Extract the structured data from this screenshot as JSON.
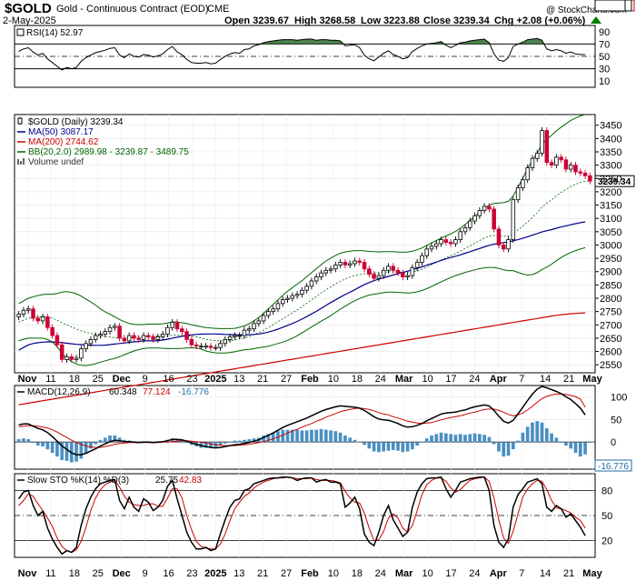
{
  "header": {
    "symbol": "$GOLD",
    "name": "Gold - Continuous Contract (EOD)",
    "exchange": "CME",
    "date": "2-May-2025",
    "open": "Open 3239.67",
    "high": "High 3268.58",
    "low": "Low 3223.88",
    "close": "Close 3239.34",
    "change": "Chg +2.08 (+0.06%)",
    "change_arrow": "up-arrow-icon",
    "watermark": "@ StockCharts.com",
    "colors": {
      "up": "#008000",
      "down": "#cc0033",
      "ma50": "#00008b",
      "ma200": "#cc0000",
      "bb": "#006400"
    }
  },
  "rsi_panel": {
    "legend": "RSI(14) 52.97",
    "ticks": [
      "90",
      "70",
      "50",
      "30",
      "10"
    ],
    "last": "52.97"
  },
  "price_panel": {
    "legend": [
      {
        "label": "$GOLD (Daily) 3239.34",
        "color": "#000000",
        "swatch": "candle"
      },
      {
        "label": "MA(50) 3087.17",
        "color": "#00008b",
        "swatch": "line"
      },
      {
        "label": "MA(200) 2744.62",
        "color": "#cc0000",
        "swatch": "line"
      },
      {
        "label": "BB(20,2.0) 2989.98 - 3239.87 - 3489.75",
        "color": "#006400",
        "swatch": "line"
      },
      {
        "label": "Volume undef",
        "color": "#666666",
        "swatch": "vol"
      }
    ],
    "ticks": [
      "3450",
      "3400",
      "3350",
      "3300",
      "3250",
      "3200",
      "3150",
      "3100",
      "3050",
      "3000",
      "2950",
      "2900",
      "2850",
      "2800",
      "2750",
      "2700",
      "2650",
      "2600",
      "2550"
    ],
    "boxes": {
      "bb_upper": "3489.75",
      "close": "3239.34",
      "ma50": "3087.17",
      "bb_lower": "2989.98",
      "ma200": "2744.62"
    }
  },
  "macd_panel": {
    "legend_prefix": "MACD(12,26,9)",
    "macd": "60.348",
    "signal": "77.124",
    "hist": "-16.776",
    "ticks": [
      "100",
      "50",
      "0"
    ]
  },
  "sto_panel": {
    "legend_prefix": "Slow STO %K(14) %D(3)",
    "k": "25.75",
    "d": "42.83",
    "ticks": [
      "80",
      "50",
      "20"
    ]
  },
  "x_axis": {
    "labels": [
      "Nov",
      "11",
      "18",
      "25",
      "Dec",
      "9",
      "16",
      "23",
      "2025",
      "13",
      "21",
      "27",
      "Feb",
      "10",
      "18",
      "24",
      "Mar",
      "10",
      "17",
      "24",
      "Apr",
      "7",
      "14",
      "21",
      "May"
    ],
    "bold": [
      "Nov",
      "Dec",
      "2025",
      "Feb",
      "Mar",
      "Apr",
      "May"
    ]
  },
  "chart_data": {
    "type": "candlestick",
    "title": "$GOLD",
    "subtitle": "Gold - Continuous Contract (EOD)",
    "price_ylim": [
      2520,
      3490
    ],
    "rsi_ylim": [
      0,
      100
    ],
    "macd_ylim": [
      -60,
      125
    ],
    "sto_ylim": [
      0,
      100
    ],
    "closes": [
      2740,
      2755,
      2760,
      2725,
      2715,
      2730,
      2690,
      2660,
      2625,
      2570,
      2580,
      2570,
      2575,
      2610,
      2630,
      2645,
      2660,
      2665,
      2675,
      2690,
      2695,
      2650,
      2640,
      2660,
      2650,
      2645,
      2660,
      2655,
      2645,
      2655,
      2665,
      2690,
      2710,
      2685,
      2675,
      2645,
      2625,
      2620,
      2620,
      2620,
      2615,
      2615,
      2630,
      2645,
      2655,
      2660,
      2660,
      2680,
      2685,
      2705,
      2715,
      2735,
      2750,
      2760,
      2780,
      2795,
      2800,
      2810,
      2815,
      2830,
      2845,
      2865,
      2880,
      2895,
      2905,
      2910,
      2925,
      2935,
      2925,
      2930,
      2940,
      2935,
      2910,
      2890,
      2875,
      2885,
      2905,
      2920,
      2905,
      2895,
      2880,
      2885,
      2915,
      2935,
      2960,
      2985,
      2995,
      3005,
      3020,
      3010,
      3005,
      3020,
      3050,
      3065,
      3090,
      3110,
      3130,
      3145,
      3135,
      3060,
      3000,
      2985,
      3020,
      3170,
      3215,
      3245,
      3290,
      3325,
      3345,
      3430,
      3310,
      3300,
      3330,
      3320,
      3285,
      3300,
      3275,
      3270,
      3260,
      3240
    ],
    "ma50": [
      2605,
      2615,
      2625,
      2630,
      2633,
      2635,
      2636,
      2636,
      2635,
      2633,
      2631,
      2629,
      2627,
      2626,
      2625,
      2624,
      2623,
      2623,
      2624,
      2626,
      2628,
      2630,
      2632,
      2634,
      2636,
      2638,
      2640,
      2640,
      2640,
      2641,
      2643,
      2646,
      2650,
      2654,
      2657,
      2660,
      2662,
      2664,
      2665,
      2666,
      2666,
      2666,
      2665,
      2664,
      2663,
      2663,
      2662,
      2662,
      2663,
      2664,
      2666,
      2669,
      2673,
      2678,
      2684,
      2691,
      2698,
      2705,
      2713,
      2722,
      2731,
      2741,
      2751,
      2762,
      2773,
      2784,
      2794,
      2804,
      2814,
      2823,
      2832,
      2842,
      2851,
      2859,
      2866,
      2872,
      2877,
      2882,
      2887,
      2892,
      2897,
      2902,
      2907,
      2912,
      2918,
      2924,
      2930,
      2936,
      2942,
      2948,
      2953,
      2958,
      2963,
      2969,
      2975,
      2981,
      2987,
      2993,
      2999,
      3003,
      3006,
      3009,
      3012,
      3016,
      3020,
      3025,
      3031,
      3037,
      3043,
      3049,
      3054,
      3058,
      3063,
      3068,
      3072,
      3076,
      3080,
      3084,
      3087
    ],
    "ma200": [
      2400,
      2403,
      2406,
      2409,
      2412,
      2415,
      2418,
      2421,
      2424,
      2427,
      2430,
      2433,
      2436,
      2439,
      2442,
      2445,
      2448,
      2451,
      2454,
      2457,
      2460,
      2463,
      2466,
      2469,
      2472,
      2475,
      2478,
      2481,
      2484,
      2487,
      2490,
      2493,
      2496,
      2499,
      2502,
      2505,
      2508,
      2511,
      2514,
      2517,
      2520,
      2523,
      2526,
      2529,
      2532,
      2535,
      2538,
      2541,
      2544,
      2547,
      2550,
      2553,
      2556,
      2559,
      2562,
      2565,
      2568,
      2571,
      2574,
      2577,
      2580,
      2583,
      2586,
      2589,
      2592,
      2595,
      2598,
      2601,
      2604,
      2607,
      2610,
      2613,
      2616,
      2619,
      2622,
      2625,
      2628,
      2631,
      2634,
      2637,
      2640,
      2643,
      2646,
      2649,
      2652,
      2655,
      2658,
      2661,
      2664,
      2667,
      2670,
      2673,
      2676,
      2679,
      2682,
      2685,
      2688,
      2691,
      2694,
      2697,
      2700,
      2703,
      2706,
      2709,
      2712,
      2715,
      2718,
      2721,
      2724,
      2727,
      2730,
      2733,
      2736,
      2738,
      2740,
      2742,
      2743,
      2744,
      2745
    ],
    "bb_mid": [
      2710,
      2718,
      2725,
      2728,
      2730,
      2732,
      2730,
      2725,
      2718,
      2708,
      2700,
      2692,
      2685,
      2678,
      2672,
      2668,
      2664,
      2660,
      2657,
      2655,
      2652,
      2650,
      2650,
      2650,
      2652,
      2654,
      2656,
      2658,
      2658,
      2658,
      2658,
      2659,
      2661,
      2661,
      2660,
      2659,
      2657,
      2655,
      2651,
      2646,
      2643,
      2641,
      2640,
      2640,
      2641,
      2643,
      2647,
      2651,
      2656,
      2663,
      2671,
      2680,
      2690,
      2701,
      2712,
      2723,
      2734,
      2745,
      2756,
      2768,
      2781,
      2794,
      2807,
      2820,
      2832,
      2843,
      2854,
      2864,
      2872,
      2879,
      2885,
      2889,
      2892,
      2894,
      2895,
      2896,
      2898,
      2899,
      2899,
      2898,
      2897,
      2897,
      2899,
      2903,
      2909,
      2917,
      2926,
      2935,
      2944,
      2952,
      2960,
      2968,
      2977,
      2987,
      2997,
      3007,
      3017,
      3026,
      3033,
      3036,
      3035,
      3033,
      3034,
      3044,
      3057,
      3071,
      3087,
      3104,
      3121,
      3143,
      3157,
      3170,
      3185,
      3198,
      3209,
      3220,
      3228,
      3235,
      3240,
      3240
    ],
    "bb_width": [
      70,
      72,
      75,
      78,
      80,
      82,
      85,
      90,
      100,
      115,
      125,
      130,
      132,
      130,
      125,
      118,
      110,
      100,
      92,
      85,
      78,
      70,
      62,
      55,
      50,
      47,
      45,
      45,
      45,
      45,
      46,
      48,
      50,
      50,
      48,
      46,
      43,
      42,
      42,
      44,
      45,
      46,
      46,
      46,
      45,
      44,
      44,
      45,
      48,
      52,
      57,
      63,
      70,
      76,
      82,
      88,
      92,
      95,
      97,
      98,
      100,
      102,
      104,
      106,
      108,
      108,
      107,
      105,
      102,
      98,
      94,
      90,
      86,
      82,
      80,
      78,
      77,
      76,
      76,
      76,
      76,
      77,
      78,
      79,
      80,
      81,
      82,
      82,
      82,
      82,
      82,
      83,
      86,
      90,
      95,
      100,
      106,
      112,
      117,
      120,
      123,
      126,
      130,
      140,
      160,
      180,
      200,
      215,
      225,
      235,
      240,
      242,
      244,
      245,
      246,
      248,
      249,
      250,
      250
    ],
    "rsi": [
      58,
      62,
      64,
      57,
      52,
      55,
      46,
      40,
      34,
      28,
      32,
      30,
      32,
      42,
      48,
      52,
      56,
      58,
      60,
      63,
      64,
      52,
      48,
      54,
      50,
      49,
      53,
      52,
      49,
      51,
      54,
      61,
      66,
      57,
      53,
      45,
      40,
      39,
      39,
      40,
      38,
      39,
      45,
      50,
      54,
      56,
      55,
      61,
      62,
      67,
      69,
      72,
      74,
      75,
      76,
      77,
      77,
      77,
      76,
      77,
      78,
      78,
      76,
      77,
      77,
      76,
      76,
      75,
      67,
      68,
      69,
      64,
      52,
      46,
      43,
      49,
      55,
      59,
      53,
      50,
      46,
      48,
      58,
      63,
      67,
      70,
      71,
      72,
      74,
      68,
      64,
      68,
      72,
      73,
      75,
      76,
      77,
      78,
      72,
      54,
      44,
      42,
      48,
      66,
      70,
      73,
      77,
      78,
      79,
      76,
      62,
      59,
      61,
      59,
      55,
      57,
      54,
      53,
      53
    ],
    "macd": [
      38,
      40,
      40,
      35,
      30,
      27,
      21,
      12,
      2,
      -9,
      -16,
      -24,
      -28,
      -28,
      -25,
      -20,
      -15,
      -9,
      -4,
      1,
      4,
      3,
      1,
      1,
      0,
      -1,
      0,
      0,
      -1,
      0,
      1,
      3,
      6,
      6,
      5,
      2,
      -2,
      -5,
      -8,
      -10,
      -12,
      -13,
      -12,
      -10,
      -8,
      -6,
      -5,
      -3,
      -1,
      2,
      5,
      10,
      15,
      20,
      26,
      32,
      37,
      41,
      45,
      49,
      53,
      58,
      63,
      68,
      72,
      75,
      78,
      80,
      79,
      78,
      77,
      75,
      70,
      63,
      56,
      51,
      49,
      48,
      45,
      41,
      36,
      33,
      34,
      37,
      41,
      47,
      52,
      57,
      62,
      64,
      65,
      66,
      69,
      71,
      75,
      78,
      80,
      82,
      80,
      70,
      57,
      46,
      42,
      48,
      62,
      77,
      92,
      106,
      117,
      123,
      120,
      116,
      112,
      107,
      100,
      94,
      85,
      75,
      60
    ],
    "macd_signal": [
      34,
      35,
      36,
      36,
      35,
      33,
      31,
      27,
      22,
      16,
      10,
      4,
      -1,
      -5,
      -9,
      -11,
      -12,
      -12,
      -10,
      -8,
      -5,
      -3,
      -2,
      -1,
      -1,
      -1,
      -1,
      -1,
      -1,
      -1,
      0,
      0,
      1,
      2,
      3,
      3,
      2,
      1,
      0,
      -2,
      -4,
      -6,
      -7,
      -8,
      -8,
      -8,
      -7,
      -6,
      -5,
      -3,
      -1,
      1,
      4,
      7,
      11,
      15,
      20,
      24,
      28,
      33,
      37,
      41,
      46,
      50,
      55,
      59,
      63,
      67,
      70,
      72,
      74,
      75,
      74,
      72,
      69,
      65,
      62,
      60,
      56,
      53,
      50,
      46,
      44,
      42,
      41,
      42,
      43,
      46,
      49,
      52,
      54,
      56,
      58,
      61,
      64,
      66,
      69,
      72,
      73,
      73,
      70,
      66,
      61,
      58,
      60,
      64,
      71,
      79,
      88,
      96,
      101,
      104,
      106,
      106,
      105,
      103,
      100,
      95,
      77
    ],
    "sto_k": [
      70,
      78,
      80,
      62,
      50,
      55,
      35,
      22,
      12,
      4,
      8,
      6,
      12,
      38,
      58,
      72,
      82,
      88,
      90,
      92,
      93,
      68,
      58,
      72,
      60,
      55,
      70,
      66,
      56,
      60,
      68,
      85,
      92,
      70,
      50,
      30,
      18,
      10,
      10,
      12,
      8,
      10,
      28,
      45,
      60,
      68,
      70,
      80,
      82,
      88,
      90,
      92,
      94,
      95,
      95,
      96,
      96,
      95,
      92,
      94,
      95,
      95,
      90,
      92,
      93,
      90,
      90,
      88,
      60,
      65,
      72,
      58,
      28,
      18,
      14,
      30,
      50,
      62,
      45,
      35,
      25,
      30,
      60,
      78,
      88,
      94,
      95,
      95,
      96,
      82,
      72,
      80,
      90,
      92,
      94,
      95,
      96,
      96,
      80,
      38,
      18,
      12,
      22,
      60,
      75,
      82,
      90,
      92,
      94,
      88,
      60,
      55,
      62,
      58,
      48,
      52,
      44,
      36,
      26
    ],
    "sto_d": [
      62,
      68,
      76,
      73,
      64,
      56,
      47,
      37,
      23,
      13,
      8,
      6,
      9,
      19,
      36,
      56,
      71,
      81,
      87,
      90,
      92,
      84,
      73,
      66,
      63,
      62,
      62,
      64,
      64,
      61,
      61,
      71,
      82,
      82,
      71,
      50,
      33,
      19,
      13,
      11,
      10,
      10,
      16,
      28,
      44,
      58,
      66,
      73,
      77,
      83,
      87,
      90,
      92,
      94,
      95,
      95,
      96,
      95,
      94,
      94,
      94,
      95,
      93,
      92,
      92,
      92,
      91,
      89,
      79,
      71,
      66,
      65,
      53,
      35,
      20,
      21,
      31,
      47,
      52,
      47,
      35,
      30,
      38,
      56,
      75,
      87,
      92,
      95,
      95,
      91,
      83,
      78,
      81,
      87,
      92,
      94,
      95,
      96,
      91,
      71,
      45,
      23,
      17,
      31,
      52,
      72,
      82,
      88,
      92,
      91,
      81,
      68,
      59,
      58,
      56,
      53,
      48,
      44,
      35
    ]
  }
}
